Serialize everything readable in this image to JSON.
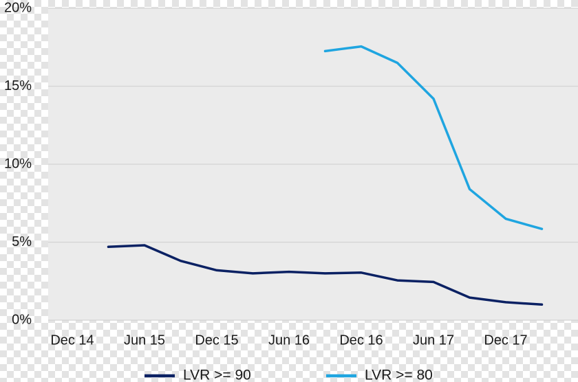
{
  "chart_data": {
    "type": "line",
    "title": "",
    "xlabel": "",
    "ylabel": "",
    "x_ticks": [
      "Dec 14",
      "Jun 15",
      "Dec 15",
      "Jun 16",
      "Dec 16",
      "Jun 17",
      "Dec 17"
    ],
    "y_ticks": [
      "0%",
      "5%",
      "10%",
      "15%",
      "20%"
    ],
    "ylim": [
      0,
      20
    ],
    "x_range": [
      "Oct 14",
      "Jun 18"
    ],
    "grid": "horizontal",
    "legend_position": "bottom",
    "plot_background": "#ebebeb",
    "x": [
      "Mar 15",
      "Jun 15",
      "Sep 15",
      "Dec 15",
      "Mar 16",
      "Jun 16",
      "Sep 16",
      "Dec 16",
      "Mar 17",
      "Jun 17",
      "Sep 17",
      "Dec 17",
      "Mar 18"
    ],
    "series": [
      {
        "name": "LVR >= 90",
        "color": "#0b2163",
        "values": [
          4.7,
          4.8,
          3.8,
          3.2,
          3.0,
          3.1,
          3.0,
          3.05,
          2.55,
          2.45,
          1.45,
          1.15,
          1.0
        ]
      },
      {
        "name": "LVR >= 80",
        "color": "#1fa5e0",
        "values": [
          null,
          null,
          null,
          null,
          null,
          null,
          17.25,
          17.55,
          16.5,
          14.2,
          8.4,
          6.5,
          5.85
        ]
      }
    ]
  }
}
